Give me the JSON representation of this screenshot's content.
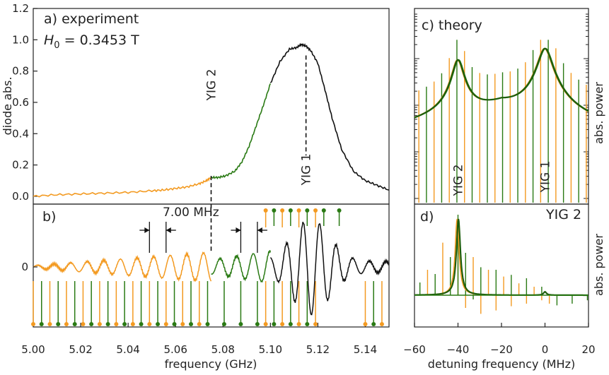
{
  "colors": {
    "orange": "#f39a21",
    "green": "#2a7a14",
    "dark_green": "#1d5e0c",
    "black": "#111111",
    "yig1": "#2222dd",
    "yig2": "#9e1b1b"
  },
  "chart_data": [
    {
      "panel": "a",
      "type": "line",
      "label": "a) experiment",
      "h0_sym": "H",
      "h0_sub": "0",
      "h0_val": " = 0.3453 T",
      "ylabel": "diode abs.",
      "xlim": [
        5.0,
        5.15
      ],
      "ylim": [
        -0.05,
        1.2
      ],
      "yticks": [
        "0.0",
        "0.2",
        "0.4",
        "0.6",
        "0.8",
        "1.0",
        "1.2"
      ],
      "ytick_values": [
        0.0,
        0.2,
        0.4,
        0.6,
        0.8,
        1.0,
        1.2
      ],
      "marker_yig2": {
        "label": "YIG 2",
        "x": 5.075
      },
      "marker_yig1": {
        "label": "YIG 1",
        "x": 5.115
      },
      "series": [
        {
          "color": "orange",
          "x": [
            5.0,
            5.01,
            5.02,
            5.03,
            5.04,
            5.05,
            5.055,
            5.06,
            5.065,
            5.07,
            5.073,
            5.075
          ],
          "y": [
            0.0,
            0.01,
            0.015,
            0.02,
            0.025,
            0.035,
            0.04,
            0.05,
            0.06,
            0.08,
            0.1,
            0.12
          ]
        },
        {
          "color": "green",
          "x": [
            5.075,
            5.078,
            5.081,
            5.085,
            5.088,
            5.091,
            5.094,
            5.097,
            5.1
          ],
          "y": [
            0.12,
            0.12,
            0.13,
            0.16,
            0.22,
            0.32,
            0.45,
            0.58,
            0.72
          ]
        },
        {
          "color": "black",
          "x": [
            5.1,
            5.104,
            5.108,
            5.111,
            5.113,
            5.115,
            5.117,
            5.12,
            5.123,
            5.126,
            5.13,
            5.135,
            5.14,
            5.145,
            5.15
          ],
          "y": [
            0.72,
            0.86,
            0.94,
            0.95,
            0.97,
            0.96,
            0.93,
            0.85,
            0.68,
            0.5,
            0.3,
            0.16,
            0.1,
            0.07,
            0.04
          ]
        }
      ]
    },
    {
      "panel": "b",
      "type": "line",
      "label": "b)",
      "xlabel": "frequency (GHz)",
      "xlim": [
        5.0,
        5.15
      ],
      "xticks": [
        "5.00",
        "5.02",
        "5.04",
        "5.06",
        "5.08",
        "5.10",
        "5.12",
        "5.14"
      ],
      "xtick_values": [
        5.0,
        5.02,
        5.04,
        5.06,
        5.08,
        5.1,
        5.12,
        5.14
      ],
      "ytick_zero": "0",
      "spacing_label": "7.00 MHz",
      "spacing_mhz": 7.0,
      "comb_orange_x": [
        5.0,
        5.007,
        5.014,
        5.021,
        5.028,
        5.035,
        5.042,
        5.049,
        5.056,
        5.063,
        5.07,
        5.098,
        5.105,
        5.112,
        5.119,
        5.14,
        5.147
      ],
      "comb_green_x": [
        5.0035,
        5.0105,
        5.0175,
        5.0245,
        5.0315,
        5.0385,
        5.0455,
        5.0525,
        5.0595,
        5.0665,
        5.0735,
        5.0805,
        5.0875,
        5.0945,
        5.1015,
        5.1085,
        5.1155,
        5.1435
      ]
    },
    {
      "panel": "c",
      "type": "line",
      "label": "c) theory",
      "ylabel": "abs. power",
      "xlim": [
        -60,
        20
      ],
      "yscale": "log",
      "marker_yig2": {
        "label": "YIG 2",
        "x": -40
      },
      "marker_yig1": {
        "label": "YIG 1",
        "x": 0
      }
    },
    {
      "panel": "d",
      "type": "line",
      "label": "d)",
      "label_yig2": "YIG 2",
      "ylabel": "abs. power",
      "xlabel": "detuning frequency (MHz)",
      "xlim": [
        -60,
        20
      ],
      "xticks": [
        "−60",
        "−40",
        "−20",
        "0",
        "20"
      ],
      "xtick_values": [
        -60,
        -40,
        -20,
        0,
        20
      ],
      "orange_lines": [
        {
          "x": -40,
          "y": 0.9
        },
        {
          "x": -33,
          "y": 0.45
        },
        {
          "x": -26,
          "y": 0.3
        },
        {
          "x": -19,
          "y": 0.22
        },
        {
          "x": -12,
          "y": 0.14
        },
        {
          "x": -5,
          "y": 0.1
        },
        {
          "x": 2,
          "y": -0.1
        },
        {
          "x": -47,
          "y": 0.62
        },
        {
          "x": -54,
          "y": 0.3
        },
        {
          "x": -36.5,
          "y": -0.15
        },
        {
          "x": -29.5,
          "y": -0.22
        },
        {
          "x": -22.5,
          "y": -0.18
        },
        {
          "x": -15.5,
          "y": -0.13
        },
        {
          "x": -8.5,
          "y": -0.1
        },
        {
          "x": -1.5,
          "y": -0.06
        }
      ],
      "green_lines": [
        {
          "x": -40,
          "y": 0.95
        },
        {
          "x": -43.5,
          "y": 0.45
        },
        {
          "x": -50.5,
          "y": 0.25
        },
        {
          "x": -57.5,
          "y": 0.15
        },
        {
          "x": -36.5,
          "y": 0.5
        },
        {
          "x": -29.5,
          "y": 0.33
        },
        {
          "x": -22.5,
          "y": 0.3
        },
        {
          "x": -15.5,
          "y": 0.24
        },
        {
          "x": -8.5,
          "y": 0.2
        },
        {
          "x": -1.5,
          "y": 0.1
        },
        {
          "x": 5.5,
          "y": -0.12
        },
        {
          "x": 12.5,
          "y": -0.1
        },
        {
          "x": 19.5,
          "y": -0.06
        },
        {
          "x": -33,
          "y": -0.05
        }
      ]
    }
  ]
}
